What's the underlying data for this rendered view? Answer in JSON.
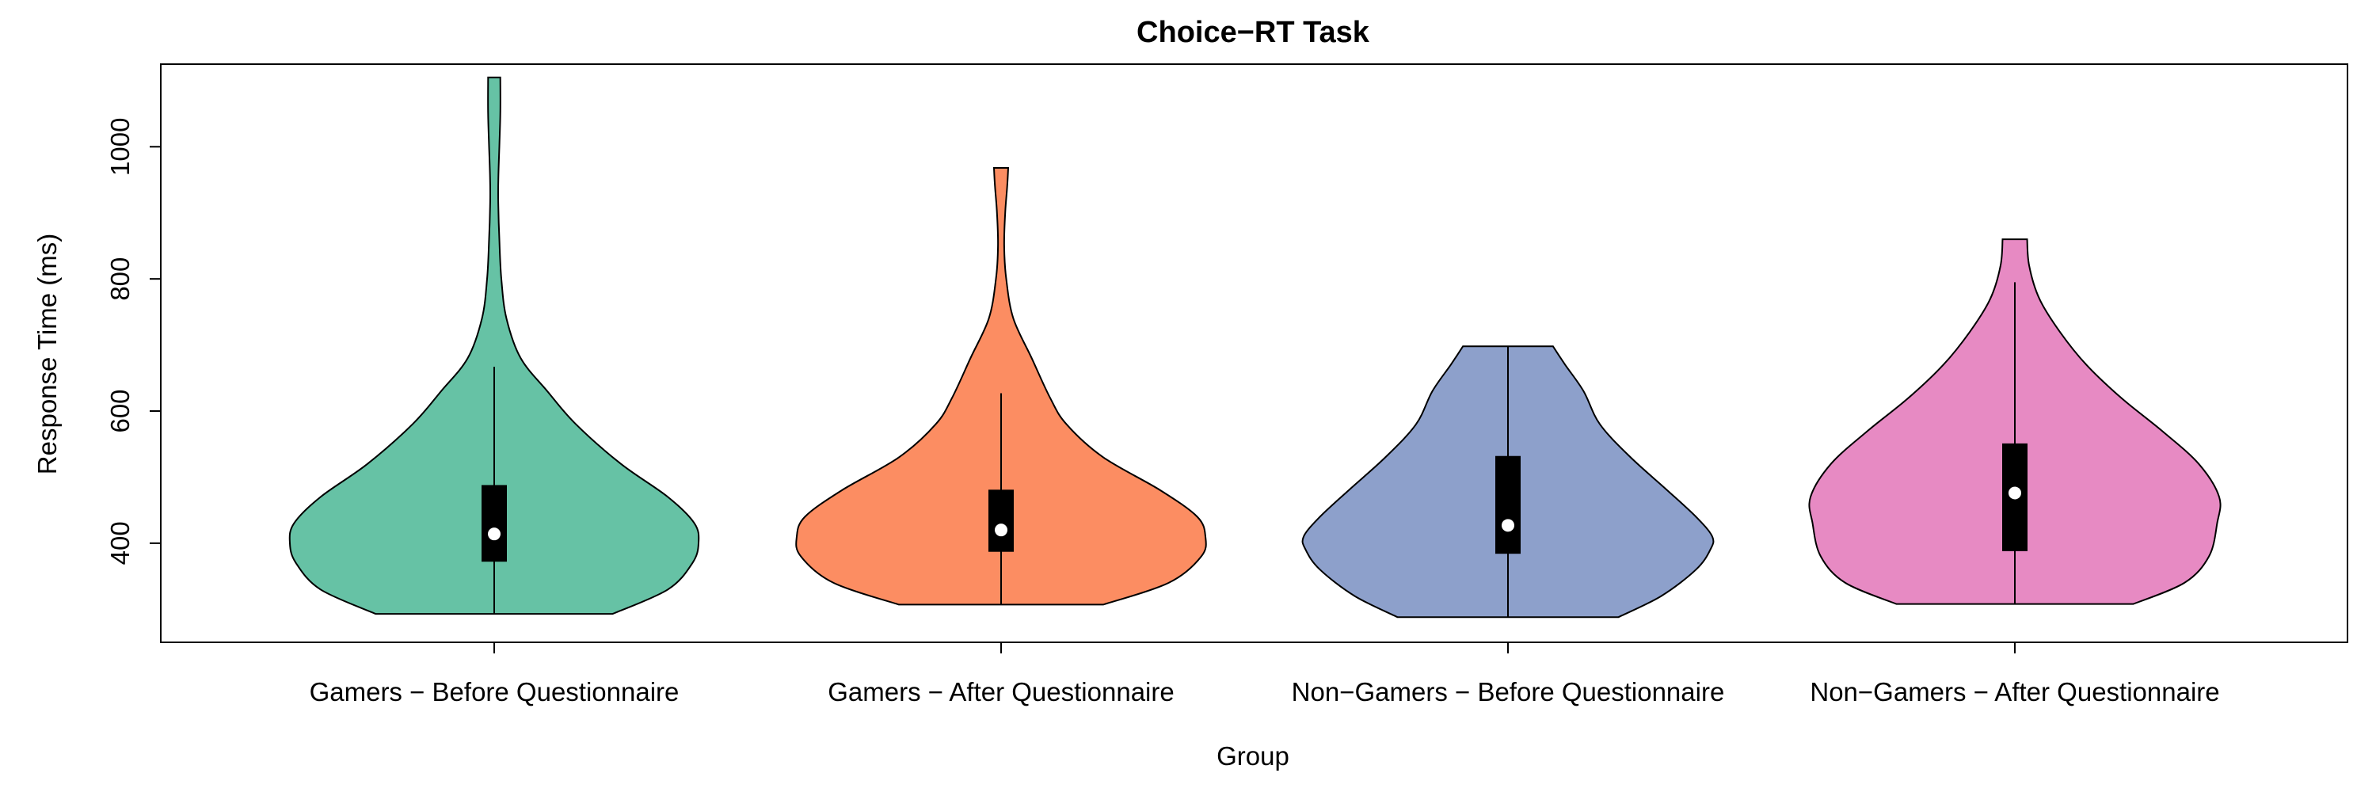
{
  "chart_data": {
    "type": "violin",
    "title": "Choice−RT Task",
    "xlabel": "Group",
    "ylabel": "Response Time (ms)",
    "ylim": [
      250,
      1125
    ],
    "yticks": [
      400,
      600,
      800,
      1000
    ],
    "grid": false,
    "legend": "none",
    "categories": [
      "Gamers − Before Questionnaire",
      "Gamers − After Questionnaire",
      "Non−Gamers − Before Questionnaire",
      "Non−Gamers − After Questionnaire"
    ],
    "colors": [
      "#66c2a5",
      "#fc8d62",
      "#8da0cb",
      "#e78ac3"
    ],
    "series": [
      {
        "min": 293,
        "max": 1105,
        "whisker_low": 293,
        "whisker_high": 667,
        "q1": 372,
        "median": 414,
        "q3": 488,
        "density": [
          [
            293,
            0.58
          ],
          [
            330,
            0.85
          ],
          [
            370,
            0.97
          ],
          [
            400,
            1.0
          ],
          [
            430,
            0.98
          ],
          [
            470,
            0.85
          ],
          [
            520,
            0.62
          ],
          [
            580,
            0.4
          ],
          [
            630,
            0.26
          ],
          [
            680,
            0.13
          ],
          [
            740,
            0.06
          ],
          [
            800,
            0.035
          ],
          [
            860,
            0.025
          ],
          [
            910,
            0.02
          ],
          [
            950,
            0.02
          ],
          [
            1000,
            0.025
          ],
          [
            1050,
            0.03
          ],
          [
            1105,
            0.03
          ]
        ]
      },
      {
        "min": 307,
        "max": 968,
        "whisker_low": 307,
        "whisker_high": 627,
        "q1": 387,
        "median": 420,
        "q3": 481,
        "density": [
          [
            307,
            0.5
          ],
          [
            340,
            0.82
          ],
          [
            380,
            0.98
          ],
          [
            410,
            1.0
          ],
          [
            440,
            0.96
          ],
          [
            480,
            0.78
          ],
          [
            530,
            0.5
          ],
          [
            580,
            0.32
          ],
          [
            620,
            0.24
          ],
          [
            680,
            0.15
          ],
          [
            740,
            0.06
          ],
          [
            800,
            0.025
          ],
          [
            850,
            0.015
          ],
          [
            900,
            0.02
          ],
          [
            940,
            0.03
          ],
          [
            968,
            0.035
          ]
        ]
      },
      {
        "min": 288,
        "max": 698,
        "whisker_low": 288,
        "whisker_high": 698,
        "q1": 384,
        "median": 427,
        "q3": 532,
        "density": [
          [
            288,
            0.54
          ],
          [
            320,
            0.75
          ],
          [
            360,
            0.92
          ],
          [
            390,
            0.99
          ],
          [
            410,
            1.0
          ],
          [
            440,
            0.92
          ],
          [
            480,
            0.78
          ],
          [
            530,
            0.6
          ],
          [
            580,
            0.45
          ],
          [
            630,
            0.37
          ],
          [
            670,
            0.28
          ],
          [
            698,
            0.22
          ]
        ]
      },
      {
        "min": 308,
        "max": 860,
        "whisker_low": 308,
        "whisker_high": 795,
        "q1": 388,
        "median": 476,
        "q3": 551,
        "density": [
          [
            308,
            0.58
          ],
          [
            340,
            0.83
          ],
          [
            380,
            0.95
          ],
          [
            430,
            0.99
          ],
          [
            470,
            1.0
          ],
          [
            520,
            0.9
          ],
          [
            570,
            0.72
          ],
          [
            620,
            0.52
          ],
          [
            670,
            0.35
          ],
          [
            720,
            0.22
          ],
          [
            770,
            0.12
          ],
          [
            820,
            0.07
          ],
          [
            860,
            0.06
          ]
        ]
      }
    ]
  }
}
